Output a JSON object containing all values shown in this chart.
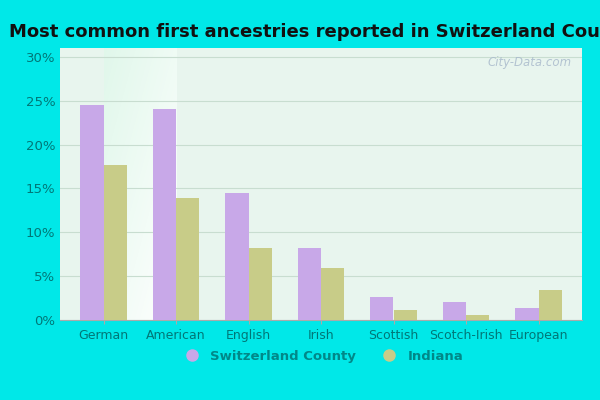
{
  "title": "Most common first ancestries reported in Switzerland County",
  "categories": [
    "German",
    "American",
    "English",
    "Irish",
    "Scottish",
    "Scotch-Irish",
    "European"
  ],
  "switzerland_county": [
    24.5,
    24.0,
    14.5,
    8.2,
    2.6,
    2.0,
    1.4
  ],
  "indiana": [
    17.7,
    13.9,
    8.2,
    5.9,
    1.1,
    0.6,
    3.4
  ],
  "county_color": "#c8a8e8",
  "indiana_color": "#c8cc88",
  "background_color": "#00e8e8",
  "plot_bg_color": "#ddf0e8",
  "title_fontsize": 13,
  "ylabel_ticks": [
    0,
    5,
    10,
    15,
    20,
    25,
    30
  ],
  "ylim": [
    0,
    31
  ],
  "bar_width": 0.32,
  "watermark": "City-Data.com",
  "legend_labels": [
    "Switzerland County",
    "Indiana"
  ],
  "legend_text_color": "#008888",
  "axis_text_color": "#007777",
  "grid_color": "#c8ddd0"
}
